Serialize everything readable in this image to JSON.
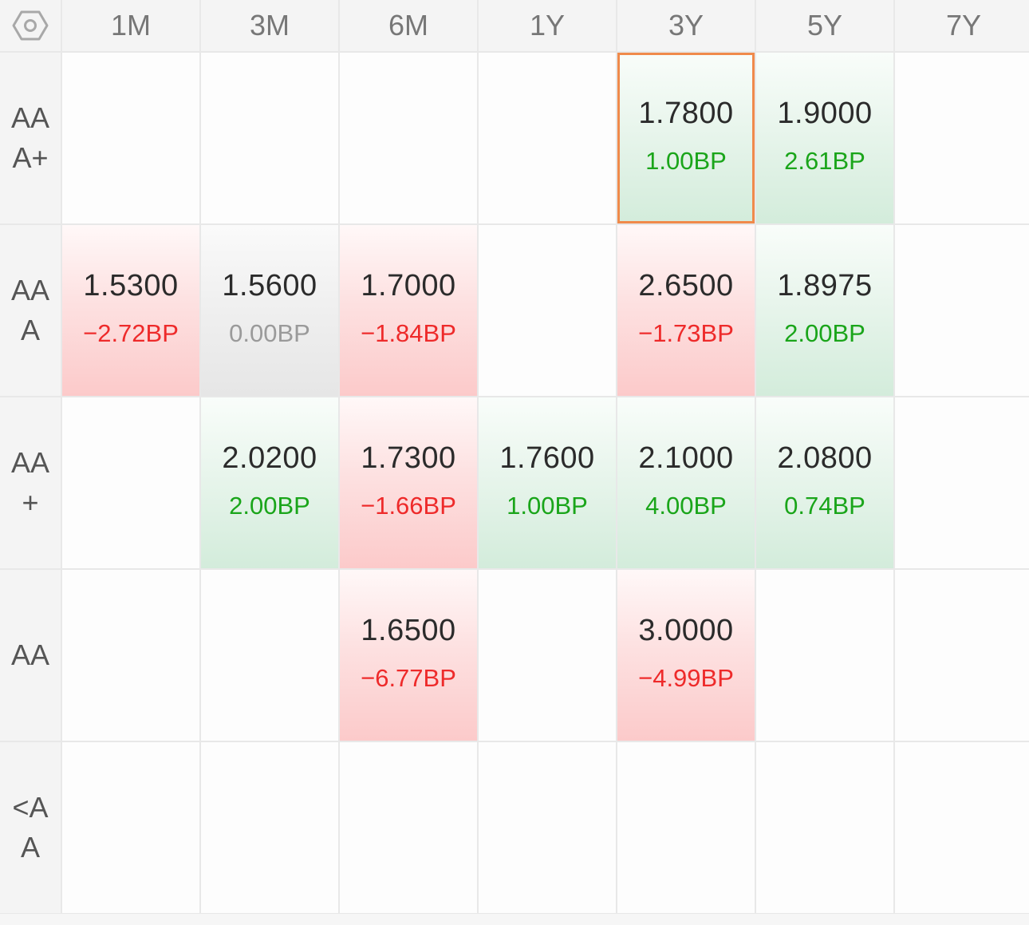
{
  "columns": [
    "1M",
    "3M",
    "6M",
    "1Y",
    "3Y",
    "5Y",
    "7Y"
  ],
  "rows": [
    {
      "label_lines": [
        "AA",
        "A+"
      ],
      "cells": [
        null,
        null,
        null,
        null,
        {
          "rate": "1.7800",
          "change": "1.00BP",
          "trend": "up",
          "selected": true
        },
        {
          "rate": "1.9000",
          "change": "2.61BP",
          "trend": "up"
        },
        null
      ]
    },
    {
      "label_lines": [
        "AA",
        "A"
      ],
      "cells": [
        {
          "rate": "1.5300",
          "change": "−2.72BP",
          "trend": "down"
        },
        {
          "rate": "1.5600",
          "change": "0.00BP",
          "trend": "flat"
        },
        {
          "rate": "1.7000",
          "change": "−1.84BP",
          "trend": "down"
        },
        null,
        {
          "rate": "2.6500",
          "change": "−1.73BP",
          "trend": "down"
        },
        {
          "rate": "1.8975",
          "change": "2.00BP",
          "trend": "up"
        },
        null
      ]
    },
    {
      "label_lines": [
        "AA",
        "+"
      ],
      "cells": [
        null,
        {
          "rate": "2.0200",
          "change": "2.00BP",
          "trend": "up"
        },
        {
          "rate": "1.7300",
          "change": "−1.66BP",
          "trend": "down"
        },
        {
          "rate": "1.7600",
          "change": "1.00BP",
          "trend": "up"
        },
        {
          "rate": "2.1000",
          "change": "4.00BP",
          "trend": "up"
        },
        {
          "rate": "2.0800",
          "change": "0.74BP",
          "trend": "up"
        },
        null
      ]
    },
    {
      "label_lines": [
        "AA"
      ],
      "cells": [
        null,
        null,
        {
          "rate": "1.6500",
          "change": "−6.77BP",
          "trend": "down"
        },
        null,
        {
          "rate": "3.0000",
          "change": "−4.99BP",
          "trend": "down"
        },
        null,
        null
      ]
    },
    {
      "label_lines": [
        "<A",
        "A"
      ],
      "cells": [
        null,
        null,
        null,
        null,
        null,
        null,
        null
      ]
    }
  ],
  "icons": {
    "settings": "settings-hex-icon"
  },
  "colors": {
    "up": "#1aa51a",
    "down": "#ee2a2a",
    "flat": "#9a9a9a",
    "selected_border": "#f08a4b"
  }
}
